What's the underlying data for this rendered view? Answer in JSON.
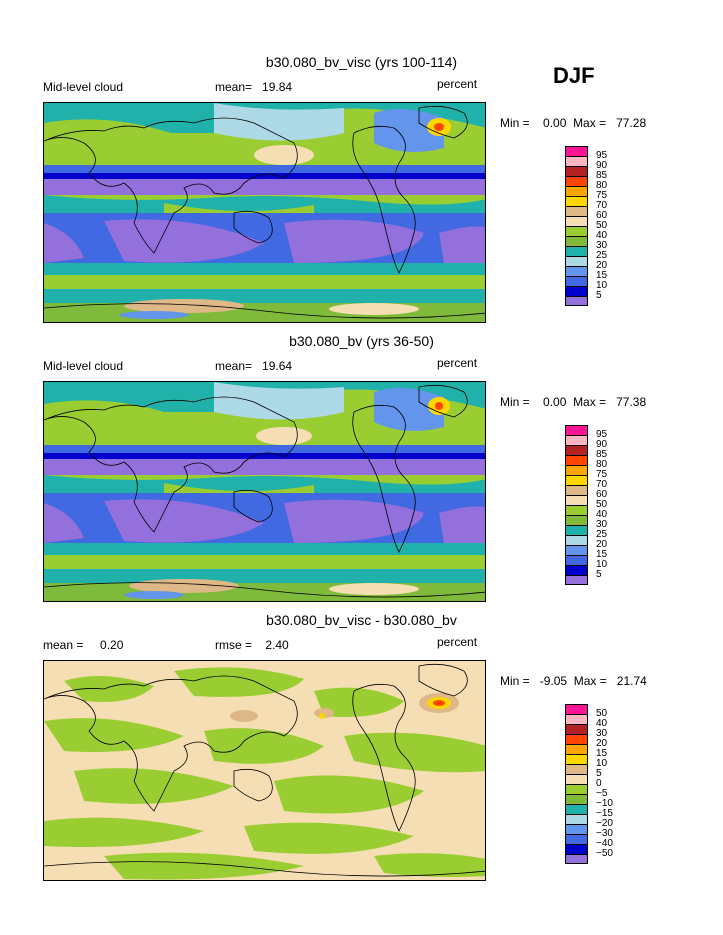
{
  "season": "DJF",
  "panels": [
    {
      "title": "b30.080_bv_visc (yrs 100-114)",
      "left_label": "Mid-level cloud",
      "mean_label": "mean=",
      "mean_value": "19.84",
      "units": "percent",
      "min_label": "Min =",
      "min_value": "0.00",
      "max_label": "Max =",
      "max_value": "77.28",
      "levels": [
        "95",
        "90",
        "85",
        "80",
        "75",
        "70",
        "60",
        "50",
        "40",
        "30",
        "25",
        "20",
        "15",
        "10",
        "5"
      ],
      "colors": [
        "#ff1493",
        "#ffb6c1",
        "#b22222",
        "#ff4500",
        "#ffa500",
        "#ffd700",
        "#deb887",
        "#f5deb3",
        "#9acd32",
        "#7fba3a",
        "#20b2aa",
        "#add8e6",
        "#6495ed",
        "#4169e1",
        "#0000cd",
        "#9370db"
      ]
    },
    {
      "title": "b30.080_bv (yrs 36-50)",
      "left_label": "Mid-level cloud",
      "mean_label": "mean=",
      "mean_value": "19.64",
      "units": "percent",
      "min_label": "Min =",
      "min_value": "0.00",
      "max_label": "Max =",
      "max_value": "77.38",
      "levels": [
        "95",
        "90",
        "85",
        "80",
        "75",
        "70",
        "60",
        "50",
        "40",
        "30",
        "25",
        "20",
        "15",
        "10",
        "5"
      ],
      "colors": [
        "#ff1493",
        "#ffb6c1",
        "#b22222",
        "#ff4500",
        "#ffa500",
        "#ffd700",
        "#deb887",
        "#f5deb3",
        "#9acd32",
        "#7fba3a",
        "#20b2aa",
        "#add8e6",
        "#6495ed",
        "#4169e1",
        "#0000cd",
        "#9370db"
      ]
    },
    {
      "title": "b30.080_bv_visc - b30.080_bv",
      "left_label": "mean =",
      "left_value": "0.20",
      "mean_label": "rmse =",
      "mean_value": "2.40",
      "units": "percent",
      "min_label": "Min =",
      "min_value": "-9.05",
      "max_label": "Max =",
      "max_value": "21.74",
      "levels": [
        "50",
        "40",
        "30",
        "20",
        "15",
        "10",
        "5",
        "0",
        "−5",
        "−10",
        "−15",
        "−20",
        "−30",
        "−40",
        "−50"
      ],
      "colors": [
        "#ff1493",
        "#ffb6c1",
        "#b22222",
        "#ff4500",
        "#ffa500",
        "#ffd700",
        "#deb887",
        "#f5deb3",
        "#9acd32",
        "#7fba3a",
        "#20b2aa",
        "#add8e6",
        "#6495ed",
        "#4169e1",
        "#0000cd",
        "#9370db"
      ]
    }
  ]
}
